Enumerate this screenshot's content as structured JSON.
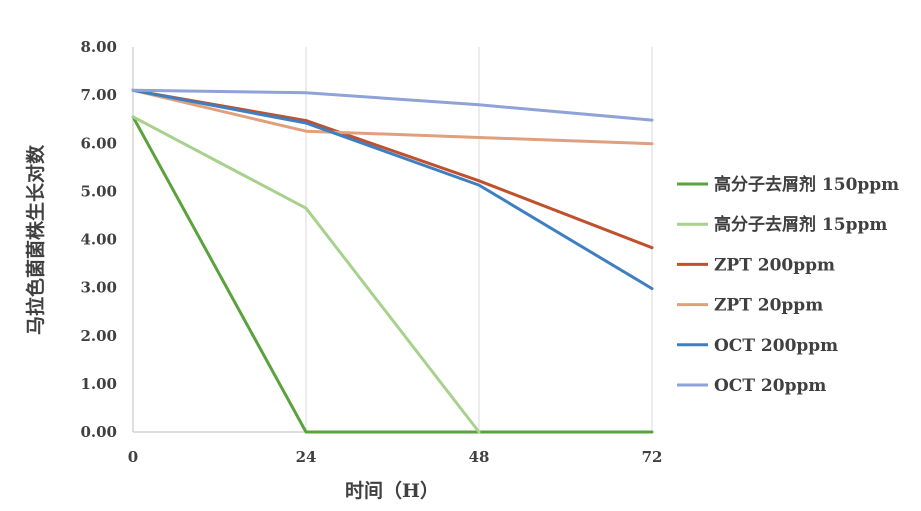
{
  "chart_data": {
    "type": "line",
    "xlabel": "时间（H）",
    "ylabel": "马拉色菌菌株生长对数",
    "x": [
      0,
      24,
      48,
      72
    ],
    "x_ticks": [
      "0",
      "24",
      "48",
      "72"
    ],
    "y_ticks": [
      "0.00",
      "1.00",
      "2.00",
      "3.00",
      "4.00",
      "5.00",
      "6.00",
      "7.00",
      "8.00"
    ],
    "ylim": [
      0,
      8
    ],
    "xlim": [
      0,
      72
    ],
    "grid": "vertical",
    "legend_position": "right",
    "series": [
      {
        "name": "高分子去屑剂 150ppm",
        "color": "#5aa23c",
        "values": [
          6.55,
          0,
          0,
          0
        ]
      },
      {
        "name": "高分子去屑剂 15ppm",
        "color": "#a9d18e",
        "values": [
          6.55,
          4.65,
          0,
          null
        ]
      },
      {
        "name": "ZPT 200ppm",
        "color": "#c0502e",
        "values": [
          7.1,
          6.47,
          5.22,
          3.83
        ]
      },
      {
        "name": "ZPT 20ppm",
        "color": "#e0a07e",
        "values": [
          7.1,
          6.25,
          6.12,
          5.99
        ]
      },
      {
        "name": "OCT 200ppm",
        "color": "#3d7fc1",
        "values": [
          7.1,
          6.42,
          5.13,
          2.98
        ]
      },
      {
        "name": "OCT 20ppm",
        "color": "#8fa3d8",
        "values": [
          7.1,
          7.05,
          6.8,
          6.48
        ]
      }
    ]
  }
}
